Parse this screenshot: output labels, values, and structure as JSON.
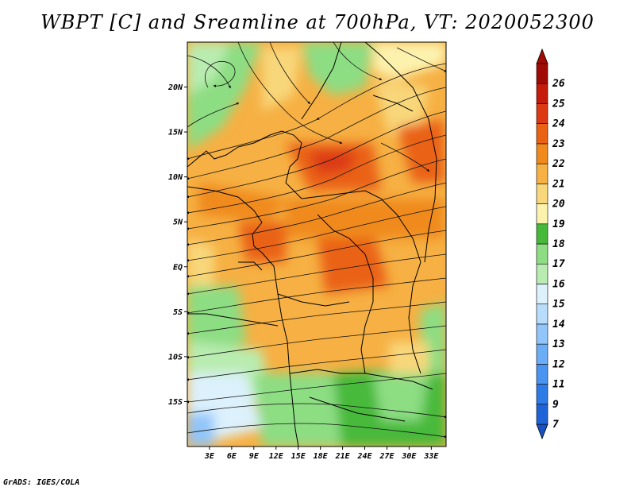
{
  "title": "WBPT [C] and Sreamline at 700hPa, VT: 2020052300",
  "credit": "GrADS: IGES/COLA",
  "map": {
    "lon_range": [
      0,
      35
    ],
    "lat_range": [
      -20,
      25
    ],
    "lat_ticks": [
      {
        "label": "20N",
        "lat": 20
      },
      {
        "label": "15N",
        "lat": 15
      },
      {
        "label": "10N",
        "lat": 10
      },
      {
        "label": "5N",
        "lat": 5
      },
      {
        "label": "EQ",
        "lat": 0
      },
      {
        "label": "5S",
        "lat": -5
      },
      {
        "label": "10S",
        "lat": -10
      },
      {
        "label": "15S",
        "lat": -15
      }
    ],
    "lon_ticks": [
      {
        "label": "3E",
        "lon": 3
      },
      {
        "label": "6E",
        "lon": 6
      },
      {
        "label": "9E",
        "lon": 9
      },
      {
        "label": "12E",
        "lon": 12
      },
      {
        "label": "15E",
        "lon": 15
      },
      {
        "label": "18E",
        "lon": 18
      },
      {
        "label": "21E",
        "lon": 21
      },
      {
        "label": "24E",
        "lon": 24
      },
      {
        "label": "27E",
        "lon": 27
      },
      {
        "label": "30E",
        "lon": 30
      },
      {
        "label": "33E",
        "lon": 33
      }
    ]
  },
  "colorbar": {
    "levels": [
      7,
      9,
      11,
      12,
      13,
      14,
      15,
      16,
      17,
      18,
      19,
      20,
      21,
      22,
      23,
      24,
      25,
      26
    ],
    "colors": [
      "#1f63d8",
      "#2d7be6",
      "#4a95ef",
      "#6caef5",
      "#92c5f9",
      "#b8dcfb",
      "#dcf1fc",
      "#b9ecb0",
      "#8ddd83",
      "#46b93a",
      "#fcf2ae",
      "#f8d77a",
      "#f6b043",
      "#f08a1c",
      "#ea6214",
      "#dc3a12",
      "#c41b0b",
      "#a00b05"
    ],
    "under_color": "#1a52c4",
    "over_color": "#a00b05"
  }
}
